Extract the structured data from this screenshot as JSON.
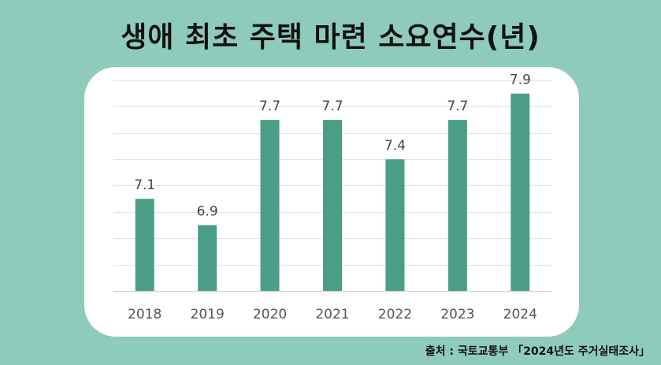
{
  "chart_data": {
    "type": "bar",
    "title": "생애 최초 주택 마련 소요연수(년)",
    "categories": [
      "2018",
      "2019",
      "2020",
      "2021",
      "2022",
      "2023",
      "2024"
    ],
    "values": [
      7.1,
      6.9,
      7.7,
      7.7,
      7.4,
      7.7,
      7.9
    ],
    "value_labels": [
      "7.1",
      "6.9",
      "7.7",
      "7.7",
      "7.4",
      "7.7",
      "7.9"
    ],
    "ylim": [
      6.4,
      8.0
    ],
    "grid": true,
    "legend": "none",
    "bar_color": "#4a9e88"
  },
  "source": "출처 : 국토교통부 「2024년도 주거실태조사」"
}
